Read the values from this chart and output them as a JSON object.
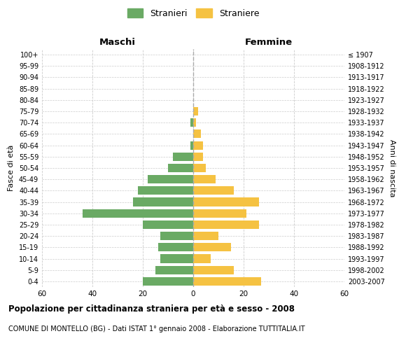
{
  "age_groups": [
    "0-4",
    "5-9",
    "10-14",
    "15-19",
    "20-24",
    "25-29",
    "30-34",
    "35-39",
    "40-44",
    "45-49",
    "50-54",
    "55-59",
    "60-64",
    "65-69",
    "70-74",
    "75-79",
    "80-84",
    "85-89",
    "90-94",
    "95-99",
    "100+"
  ],
  "birth_years": [
    "2003-2007",
    "1998-2002",
    "1993-1997",
    "1988-1992",
    "1983-1987",
    "1978-1982",
    "1973-1977",
    "1968-1972",
    "1963-1967",
    "1958-1962",
    "1953-1957",
    "1948-1952",
    "1943-1947",
    "1938-1942",
    "1933-1937",
    "1928-1932",
    "1923-1927",
    "1918-1922",
    "1913-1917",
    "1908-1912",
    "≤ 1907"
  ],
  "males": [
    20,
    15,
    13,
    14,
    13,
    20,
    44,
    24,
    22,
    18,
    10,
    8,
    1,
    0,
    1,
    0,
    0,
    0,
    0,
    0,
    0
  ],
  "females": [
    27,
    16,
    7,
    15,
    10,
    26,
    21,
    26,
    16,
    9,
    5,
    4,
    4,
    3,
    1,
    2,
    0,
    0,
    0,
    0,
    0
  ],
  "male_color": "#6aaa64",
  "female_color": "#f5c242",
  "background_color": "#ffffff",
  "grid_color": "#cccccc",
  "title_main": "Popolazione per cittadinanza straniera per età e sesso - 2008",
  "title_sub": "COMUNE DI MONTELLO (BG) - Dati ISTAT 1° gennaio 2008 - Elaborazione TUTTITALIA.IT",
  "xlabel_left": "Maschi",
  "xlabel_right": "Femmine",
  "ylabel_left": "Fasce di età",
  "ylabel_right": "Anni di nascita",
  "legend_male": "Stranieri",
  "legend_female": "Straniere",
  "xlim": 60,
  "center_line_color": "#aaaaaa"
}
